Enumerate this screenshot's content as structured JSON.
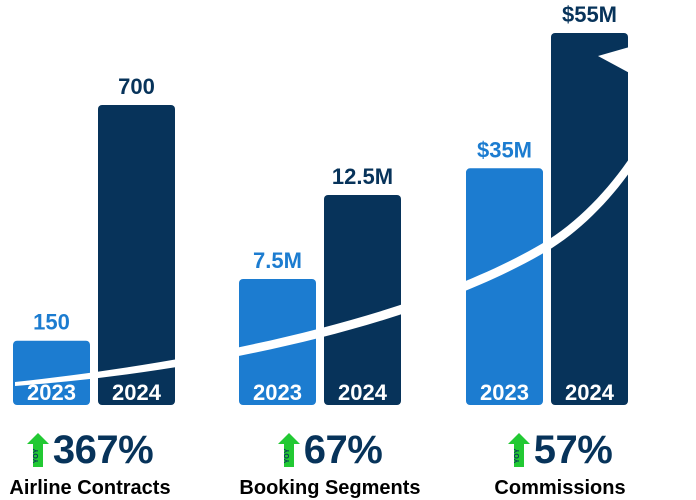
{
  "colors": {
    "bar_2023": "#1c7cd0",
    "bar_2024": "#07335a",
    "label_2023": "#1c7cd0",
    "label_2024": "#07335a",
    "year_text": "#ffffff",
    "growth_arrow": "#22c933",
    "curve_arrow": "#ffffff"
  },
  "chart_data": {
    "type": "bar",
    "title": "",
    "xlabel": "",
    "ylabel": "",
    "categories": [
      "Airline Contracts",
      "Booking Segments",
      "Commissions"
    ],
    "series": [
      {
        "name": "2023",
        "values": [
          150,
          7500000,
          35000000
        ],
        "labels": [
          "150",
          "7.5M",
          "$35M"
        ]
      },
      {
        "name": "2024",
        "values": [
          700,
          12500000,
          55000000
        ],
        "labels": [
          "700",
          "12.5M",
          "$55M"
        ]
      }
    ],
    "normalized_per_category": true,
    "grid": false,
    "legend": "none",
    "decoration": "white upward-trending arrow",
    "yoy_growth": [
      "367%",
      "67%",
      "57%"
    ]
  },
  "metrics": [
    {
      "growth": "367%",
      "name": "Airline Contracts",
      "badge": "YOY"
    },
    {
      "growth": "67%",
      "name": "Booking Segments",
      "badge": "YOY"
    },
    {
      "growth": "57%",
      "name": "Commissions",
      "badge": "YOY"
    }
  ]
}
